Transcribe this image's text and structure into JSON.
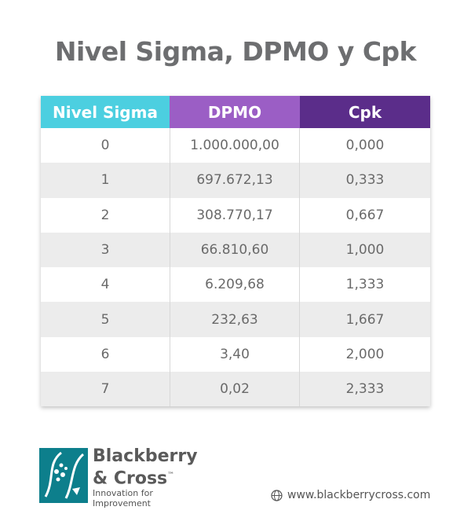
{
  "title": "Nivel Sigma, DPMO y Cpk",
  "table": {
    "header": [
      "Nivel Sigma",
      "DPMO",
      "Cpk"
    ],
    "rows": [
      [
        "0",
        "1.000.000,00",
        "0,000"
      ],
      [
        "1",
        "697.672,13",
        "0,333"
      ],
      [
        "2",
        "308.770,17",
        "0,667"
      ],
      [
        "3",
        "66.810,60",
        "1,000"
      ],
      [
        "4",
        "6.209,68",
        "1,333"
      ],
      [
        "5",
        "232,63",
        "1,667"
      ],
      [
        "6",
        "3,40",
        "2,000"
      ],
      [
        "7",
        "0,02",
        "2,333"
      ]
    ]
  },
  "logo": {
    "line1": "Blackberry",
    "line2": "& Cross",
    "trademark": "™",
    "tagline1": "Innovation for",
    "tagline2": "Improvement"
  },
  "website": "www.blackberrycross.com"
}
